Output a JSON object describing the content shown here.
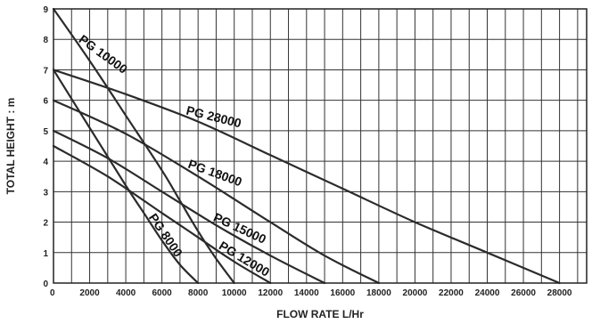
{
  "chart_data": {
    "type": "line",
    "xlabel": "FLOW RATE L/Hr",
    "ylabel": "TOTAL  HEIGHT : m",
    "xlim": [
      0,
      29500
    ],
    "ylim": [
      0,
      9
    ],
    "x_ticks": [
      0,
      2000,
      4000,
      6000,
      8000,
      10000,
      12000,
      14000,
      16000,
      18000,
      20000,
      22000,
      24000,
      26000,
      28000
    ],
    "x_tick_labels": [
      "0",
      "2000",
      "4000",
      "6000",
      "8000",
      "10000",
      "12000",
      "14000",
      "16000",
      "18000",
      "20000",
      "22000",
      "24000",
      "26000",
      "28000"
    ],
    "y_ticks": [
      0,
      1,
      2,
      3,
      4,
      5,
      6,
      7,
      8,
      9
    ],
    "y_tick_labels": [
      "0",
      "1",
      "2",
      "3",
      "4",
      "5",
      "6",
      "7",
      "8",
      "9"
    ],
    "grid": true,
    "series": [
      {
        "name": "PG 10000",
        "x": [
          0,
          2000,
          4000,
          6000,
          7000,
          8000,
          9000,
          10000
        ],
        "y": [
          9,
          7.3,
          5.5,
          3.7,
          2.7,
          1.7,
          0.8,
          0
        ]
      },
      {
        "name": "PG 8000",
        "x": [
          0,
          2000,
          4000,
          5000,
          6000,
          7000,
          8000
        ],
        "y": [
          7,
          5.1,
          3.2,
          2.3,
          1.4,
          0.6,
          0
        ]
      },
      {
        "name": "PG 28000",
        "x": [
          0,
          4000,
          8000,
          12000,
          16000,
          20000,
          24000,
          28000
        ],
        "y": [
          7,
          6.2,
          5.3,
          4.2,
          3.1,
          2.0,
          1.0,
          0
        ]
      },
      {
        "name": "PG 18000",
        "x": [
          0,
          4000,
          8000,
          12000,
          15000,
          18000
        ],
        "y": [
          6,
          4.9,
          3.5,
          2.0,
          0.9,
          0
        ]
      },
      {
        "name": "PG 15000",
        "x": [
          0,
          3000,
          6000,
          9000,
          12000,
          15000
        ],
        "y": [
          5,
          4.1,
          3.0,
          1.9,
          0.9,
          0
        ]
      },
      {
        "name": "PG 12000",
        "x": [
          0,
          3000,
          6000,
          8000,
          10000,
          12000
        ],
        "y": [
          4.5,
          3.5,
          2.3,
          1.5,
          0.7,
          0
        ]
      }
    ]
  }
}
